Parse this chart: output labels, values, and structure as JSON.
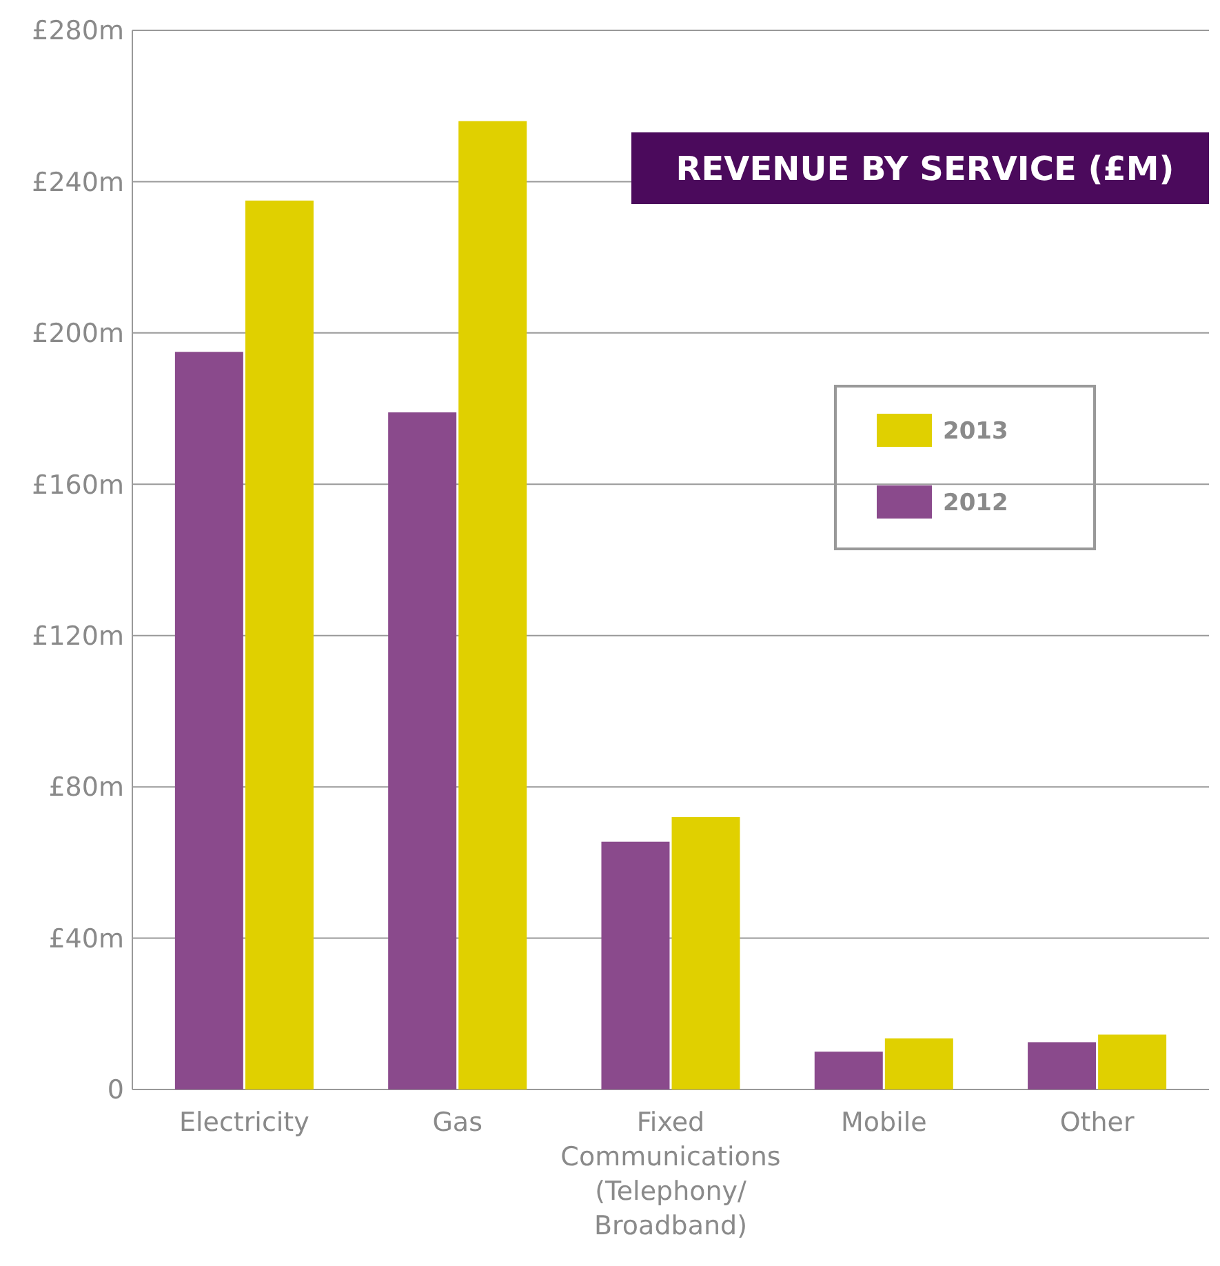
{
  "chart_data": {
    "type": "bar",
    "title": "REVENUE BY SERVICE (£M)",
    "categories": [
      "Electricity",
      "Gas",
      "Fixed\nCommunications\n(Telephony/\nBroadband)",
      "Mobile",
      "Other"
    ],
    "series": [
      {
        "name": "2012",
        "color": "#8a4a8c",
        "values": [
          195,
          179,
          65.5,
          10,
          12.5
        ]
      },
      {
        "name": "2013",
        "color": "#e0d000",
        "values": [
          235,
          256,
          72,
          13.5,
          14.5
        ]
      }
    ],
    "ylim": [
      0,
      280
    ],
    "yticks": [
      0,
      {
        "value": 40,
        "label": "£40m"
      },
      {
        "value": 80,
        "label": "£80m"
      },
      {
        "value": 120,
        "label": "£120m"
      },
      {
        "value": 160,
        "label": "£160m"
      },
      {
        "value": 200,
        "label": "£200m"
      },
      {
        "value": 240,
        "label": "£240m"
      },
      {
        "value": 280,
        "label": "£280m"
      }
    ],
    "grid": "y",
    "legend": "top right"
  }
}
